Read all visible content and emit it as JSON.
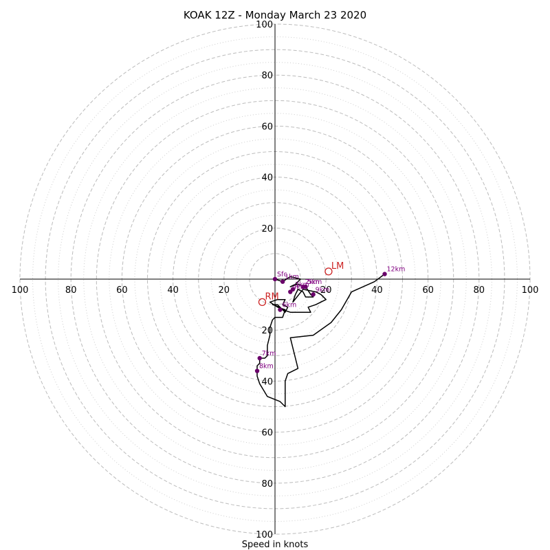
{
  "chart_data": {
    "type": "line",
    "title": "KOAK 12Z - Monday March 23 2020",
    "xlabel": "Speed in knots",
    "ylabel": "",
    "xlim": [
      -100,
      100
    ],
    "ylim": [
      -100,
      100
    ],
    "ring_ticks": [
      20,
      40,
      60,
      80,
      100
    ],
    "grid": {
      "dashed_rings": [
        10,
        20,
        30,
        40,
        50,
        60,
        70,
        80,
        90,
        100
      ],
      "dotted_rings": [
        15,
        25,
        35,
        45,
        55,
        65,
        75,
        85,
        95
      ]
    },
    "x_tick_labels": [
      "100",
      "80",
      "60",
      "40",
      "20",
      "20",
      "40",
      "60",
      "80",
      "100"
    ],
    "y_tick_labels_top": [
      "20",
      "40",
      "60",
      "80",
      "100"
    ],
    "y_tick_labels_bottom": [
      "20",
      "40",
      "60",
      "80",
      "100"
    ],
    "colors": {
      "trace": "#000000",
      "markers": "#6a006a",
      "labels": "#800080",
      "storm_motion": "#cc2222",
      "grid": "#bbbbbb",
      "axes": "#000000"
    },
    "series": [
      {
        "points": [
          [
            0,
            0
          ],
          [
            3,
            -1
          ],
          [
            6,
            1
          ],
          [
            10,
            0
          ],
          [
            8,
            -2
          ],
          [
            6,
            -3
          ],
          [
            9,
            -2
          ],
          [
            12,
            -3
          ],
          [
            14,
            -6
          ],
          [
            15,
            -7
          ],
          [
            12,
            -7
          ],
          [
            11,
            -5
          ],
          [
            9,
            -4
          ],
          [
            8,
            -6
          ],
          [
            7,
            -9
          ],
          [
            11,
            -4
          ],
          [
            16,
            -5
          ],
          [
            18,
            -6
          ],
          [
            20,
            -8
          ],
          [
            16,
            -10
          ],
          [
            13,
            -11
          ],
          [
            14,
            -13
          ],
          [
            11,
            -13
          ],
          [
            6,
            -13
          ],
          [
            3,
            -12
          ],
          [
            1,
            -10
          ],
          [
            -1,
            -10
          ],
          [
            2,
            -11
          ],
          [
            4,
            -13
          ],
          [
            5,
            -11
          ],
          [
            3,
            -10
          ],
          [
            4,
            -8
          ],
          [
            1,
            -8
          ],
          [
            -2,
            -9
          ],
          [
            1,
            -11
          ],
          [
            4,
            -12
          ],
          [
            3,
            -15
          ],
          [
            1,
            -15
          ],
          [
            0,
            -15
          ],
          [
            -1,
            -16
          ],
          [
            -1,
            -16
          ],
          [
            -2,
            -19
          ],
          [
            -2,
            -22
          ],
          [
            -3,
            -26
          ],
          [
            -3,
            -30
          ],
          [
            -4,
            -31
          ],
          [
            -5,
            -31
          ],
          [
            -6,
            -31
          ],
          [
            -6,
            -33
          ],
          [
            -7,
            -34
          ],
          [
            -7,
            -36
          ],
          [
            -7,
            -38
          ],
          [
            -6,
            -41
          ],
          [
            -3,
            -46
          ],
          [
            2,
            -48
          ],
          [
            4,
            -50
          ],
          [
            4,
            -46
          ],
          [
            4,
            -40
          ],
          [
            5,
            -37
          ],
          [
            9,
            -35
          ],
          [
            8,
            -31
          ],
          [
            7,
            -27
          ],
          [
            6,
            -23
          ],
          [
            15,
            -22
          ],
          [
            22,
            -17
          ],
          [
            26,
            -12
          ],
          [
            30,
            -5
          ],
          [
            39,
            -1
          ],
          [
            43,
            2
          ]
        ]
      }
    ],
    "height_markers": [
      {
        "label": "Sfc",
        "u": 0,
        "v": 0
      },
      {
        "label": "1km",
        "u": 3,
        "v": -1
      },
      {
        "label": "2km",
        "u": 11,
        "v": -3
      },
      {
        "label": "3km",
        "u": 7,
        "v": -4
      },
      {
        "label": "4km",
        "u": 6,
        "v": -5
      },
      {
        "label": "5km",
        "u": 12,
        "v": -3
      },
      {
        "label": "6km",
        "u": 2,
        "v": -12
      },
      {
        "label": "7km",
        "u": -6,
        "v": -31
      },
      {
        "label": "8km",
        "u": -7,
        "v": -36
      },
      {
        "label": "9km",
        "u": 15,
        "v": -6
      },
      {
        "label": "12km",
        "u": 43,
        "v": 2
      }
    ],
    "storm_motion": [
      {
        "label": "LM",
        "u": 21,
        "v": 3
      },
      {
        "label": "RM",
        "u": -5,
        "v": -9
      }
    ]
  }
}
